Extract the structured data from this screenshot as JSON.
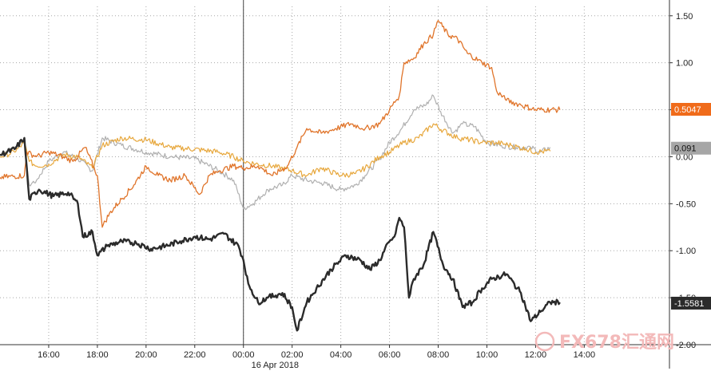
{
  "chart_data": {
    "type": "line",
    "xlim": [
      0,
      27.5
    ],
    "ylim": [
      -2.0,
      1.6
    ],
    "grid": true,
    "x_ticks": [
      {
        "x": 2.0,
        "label": "16:00"
      },
      {
        "x": 4.0,
        "label": "18:00"
      },
      {
        "x": 6.0,
        "label": "20:00"
      },
      {
        "x": 8.0,
        "label": "22:00"
      },
      {
        "x": 10.0,
        "label": "00:00"
      },
      {
        "x": 12.0,
        "label": "02:00"
      },
      {
        "x": 14.0,
        "label": "04:00"
      },
      {
        "x": 16.0,
        "label": "06:00"
      },
      {
        "x": 18.0,
        "label": "08:00"
      },
      {
        "x": 20.0,
        "label": "10:00"
      },
      {
        "x": 22.0,
        "label": "12:00"
      },
      {
        "x": 24.0,
        "label": "14:00"
      }
    ],
    "date_label": "16 Apr 2018",
    "date_label_x": 11.3,
    "session_divider_x": 10.0,
    "y_ticks": [
      {
        "y": 1.5,
        "label": "1.50"
      },
      {
        "y": 1.0,
        "label": "1.00"
      },
      {
        "y": 0.5,
        "label": "0.50"
      },
      {
        "y": 0.0,
        "label": "0.00"
      },
      {
        "y": -0.5,
        "label": "-0.50"
      },
      {
        "y": -1.0,
        "label": "-1.00"
      },
      {
        "y": -1.5,
        "label": "-1.50"
      },
      {
        "y": -2.0,
        "label": "-2.00"
      }
    ],
    "series": [
      {
        "color": "#b0b0b0",
        "width": 1.2,
        "points": [
          [
            0,
            0.02
          ],
          [
            0.6,
            0.1
          ],
          [
            1.0,
            0.18
          ],
          [
            1.2,
            -0.3
          ],
          [
            1.5,
            -0.25
          ],
          [
            2.0,
            -0.05
          ],
          [
            2.6,
            0.05
          ],
          [
            3.2,
            -0.02
          ],
          [
            3.8,
            -0.15
          ],
          [
            4.2,
            0.2
          ],
          [
            5.0,
            0.12
          ],
          [
            6.0,
            0.05
          ],
          [
            7.0,
            0.0
          ],
          [
            8.0,
            -0.02
          ],
          [
            9.0,
            -0.15
          ],
          [
            9.6,
            -0.25
          ],
          [
            10.0,
            -0.55
          ],
          [
            10.4,
            -0.5
          ],
          [
            11.0,
            -0.35
          ],
          [
            11.6,
            -0.3
          ],
          [
            12.0,
            -0.2
          ],
          [
            12.6,
            -0.25
          ],
          [
            13.2,
            -0.28
          ],
          [
            14.0,
            -0.35
          ],
          [
            14.6,
            -0.3
          ],
          [
            15.0,
            -0.2
          ],
          [
            15.6,
            -0.02
          ],
          [
            16.0,
            0.15
          ],
          [
            16.5,
            0.3
          ],
          [
            17.0,
            0.5
          ],
          [
            17.5,
            0.55
          ],
          [
            17.8,
            0.65
          ],
          [
            18.1,
            0.48
          ],
          [
            18.6,
            0.25
          ],
          [
            19.0,
            0.35
          ],
          [
            19.5,
            0.32
          ],
          [
            20.0,
            0.15
          ],
          [
            20.6,
            0.12
          ],
          [
            21.2,
            0.1
          ],
          [
            21.8,
            0.1
          ],
          [
            22.2,
            0.05
          ],
          [
            22.6,
            0.1
          ]
        ]
      },
      {
        "color": "#e7a73c",
        "width": 1.2,
        "points": [
          [
            0,
            0.0
          ],
          [
            0.6,
            0.05
          ],
          [
            1.0,
            0.15
          ],
          [
            1.2,
            -0.05
          ],
          [
            1.5,
            -0.1
          ],
          [
            2.0,
            -0.08
          ],
          [
            2.6,
            0.02
          ],
          [
            3.2,
            0.0
          ],
          [
            3.8,
            -0.12
          ],
          [
            4.2,
            0.12
          ],
          [
            5.0,
            0.2
          ],
          [
            6.0,
            0.18
          ],
          [
            7.0,
            0.1
          ],
          [
            8.0,
            0.08
          ],
          [
            9.0,
            0.05
          ],
          [
            9.6,
            0.0
          ],
          [
            10.0,
            -0.05
          ],
          [
            10.6,
            -0.08
          ],
          [
            11.2,
            -0.1
          ],
          [
            12.0,
            -0.15
          ],
          [
            12.6,
            -0.2
          ],
          [
            13.2,
            -0.12
          ],
          [
            14.0,
            -0.2
          ],
          [
            14.6,
            -0.18
          ],
          [
            15.0,
            -0.12
          ],
          [
            15.6,
            0.0
          ],
          [
            16.0,
            0.05
          ],
          [
            16.6,
            0.15
          ],
          [
            17.2,
            0.2
          ],
          [
            17.8,
            0.35
          ],
          [
            18.2,
            0.28
          ],
          [
            18.8,
            0.2
          ],
          [
            19.3,
            0.18
          ],
          [
            19.8,
            0.15
          ],
          [
            20.4,
            0.15
          ],
          [
            21.0,
            0.12
          ],
          [
            21.6,
            0.08
          ],
          [
            22.0,
            0.05
          ],
          [
            22.6,
            0.06
          ]
        ]
      },
      {
        "color": "#e0742a",
        "width": 1.3,
        "points": [
          [
            0,
            -0.22
          ],
          [
            1.0,
            -0.2
          ],
          [
            1.1,
            0.05
          ],
          [
            1.5,
            0.0
          ],
          [
            2.0,
            0.05
          ],
          [
            2.6,
            0.0
          ],
          [
            3.0,
            -0.05
          ],
          [
            3.5,
            0.1
          ],
          [
            4.0,
            -0.2
          ],
          [
            4.2,
            -0.75
          ],
          [
            4.5,
            -0.6
          ],
          [
            5.0,
            -0.45
          ],
          [
            5.5,
            -0.3
          ],
          [
            6.0,
            -0.1
          ],
          [
            6.5,
            -0.2
          ],
          [
            7.0,
            -0.25
          ],
          [
            7.6,
            -0.2
          ],
          [
            8.2,
            -0.4
          ],
          [
            8.6,
            -0.2
          ],
          [
            9.0,
            -0.15
          ],
          [
            9.6,
            -0.1
          ],
          [
            10.0,
            -0.12
          ],
          [
            10.6,
            -0.1
          ],
          [
            11.2,
            -0.2
          ],
          [
            11.8,
            -0.1
          ],
          [
            12.2,
            0.1
          ],
          [
            12.6,
            0.3
          ],
          [
            13.2,
            0.25
          ],
          [
            13.8,
            0.3
          ],
          [
            14.4,
            0.35
          ],
          [
            15.0,
            0.3
          ],
          [
            15.6,
            0.35
          ],
          [
            16.0,
            0.5
          ],
          [
            16.4,
            0.65
          ],
          [
            16.6,
            1.0
          ],
          [
            17.0,
            1.05
          ],
          [
            17.4,
            1.2
          ],
          [
            17.8,
            1.3
          ],
          [
            18.0,
            1.45
          ],
          [
            18.4,
            1.3
          ],
          [
            18.8,
            1.25
          ],
          [
            19.2,
            1.1
          ],
          [
            19.8,
            1.0
          ],
          [
            20.2,
            0.95
          ],
          [
            20.4,
            0.7
          ],
          [
            20.8,
            0.6
          ],
          [
            21.4,
            0.55
          ],
          [
            22.0,
            0.5
          ],
          [
            22.6,
            0.5
          ],
          [
            23.0,
            0.5
          ]
        ]
      },
      {
        "color": "#2b2b2b",
        "width": 2.4,
        "points": [
          [
            0,
            0.02
          ],
          [
            0.6,
            0.08
          ],
          [
            1.0,
            0.2
          ],
          [
            1.2,
            -0.45
          ],
          [
            1.6,
            -0.35
          ],
          [
            2.2,
            -0.42
          ],
          [
            2.8,
            -0.38
          ],
          [
            3.2,
            -0.5
          ],
          [
            3.4,
            -0.85
          ],
          [
            3.8,
            -0.8
          ],
          [
            4.0,
            -1.05
          ],
          [
            4.4,
            -0.95
          ],
          [
            5.0,
            -0.9
          ],
          [
            5.6,
            -0.92
          ],
          [
            6.2,
            -0.98
          ],
          [
            6.8,
            -0.95
          ],
          [
            7.4,
            -0.9
          ],
          [
            8.0,
            -0.85
          ],
          [
            8.6,
            -0.88
          ],
          [
            9.2,
            -0.82
          ],
          [
            9.8,
            -0.95
          ],
          [
            10.0,
            -1.1
          ],
          [
            10.2,
            -1.35
          ],
          [
            10.6,
            -1.55
          ],
          [
            11.0,
            -1.5
          ],
          [
            11.6,
            -1.45
          ],
          [
            12.0,
            -1.6
          ],
          [
            12.2,
            -1.85
          ],
          [
            12.6,
            -1.55
          ],
          [
            13.0,
            -1.4
          ],
          [
            13.6,
            -1.2
          ],
          [
            14.2,
            -1.05
          ],
          [
            14.8,
            -1.1
          ],
          [
            15.2,
            -1.2
          ],
          [
            15.6,
            -1.1
          ],
          [
            16.0,
            -0.9
          ],
          [
            16.2,
            -0.85
          ],
          [
            16.4,
            -0.65
          ],
          [
            16.6,
            -0.75
          ],
          [
            16.8,
            -1.5
          ],
          [
            17.0,
            -1.3
          ],
          [
            17.4,
            -1.15
          ],
          [
            17.8,
            -0.8
          ],
          [
            18.2,
            -1.15
          ],
          [
            18.6,
            -1.3
          ],
          [
            19.0,
            -1.6
          ],
          [
            19.4,
            -1.55
          ],
          [
            19.8,
            -1.4
          ],
          [
            20.2,
            -1.3
          ],
          [
            20.8,
            -1.25
          ],
          [
            21.4,
            -1.45
          ],
          [
            21.8,
            -1.75
          ],
          [
            22.2,
            -1.65
          ],
          [
            22.6,
            -1.55
          ],
          [
            23.0,
            -1.55
          ]
        ]
      }
    ],
    "last_value_badges": [
      {
        "value": 0.5047,
        "label": "0.5047",
        "bg": "#f06b1a",
        "fg": "#ffffff"
      },
      {
        "value": 0.091,
        "label": "0.091",
        "bg": "#a6a6a6",
        "fg": "#111111"
      },
      {
        "value": -1.5581,
        "label": "-1.5581",
        "bg": "#2b2b2b",
        "fg": "#ffffff"
      }
    ]
  },
  "watermark": {
    "text": "FX678",
    "suffix": "汇通网"
  }
}
